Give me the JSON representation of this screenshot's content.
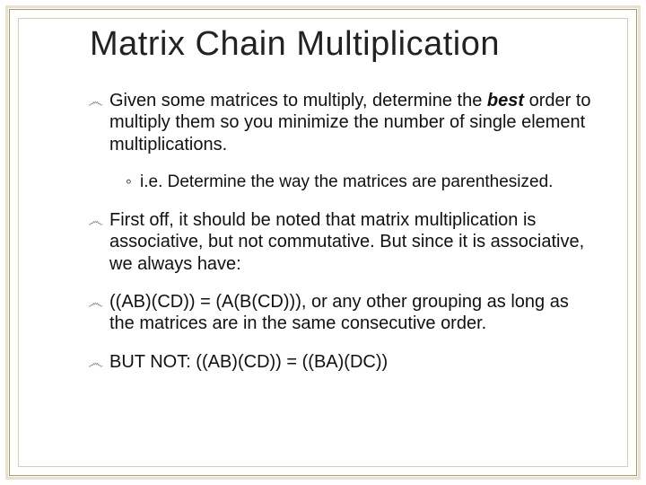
{
  "slide": {
    "title": "Matrix Chain Multiplication",
    "title_color": "#222222",
    "title_fontsize": 38,
    "body_fontsize": 20,
    "body_color": "#111111",
    "bullet_glyph": "෴",
    "sub_glyph": "◦",
    "emphasis_word": "best",
    "bullets": [
      {
        "pre": "Given some matrices to multiply, determine the ",
        "emph": "best",
        "post": " order to multiply them so you minimize the number of single element multiplications.",
        "sub": "i.e. Determine the way the matrices are parenthesized."
      },
      {
        "text": "First off, it should be noted that matrix multiplication is associative, but not commutative. But since it is associative, we always have:"
      },
      {
        "text": "((AB)(CD)) = (A(B(CD))), or any other grouping as long as the matrices are in the same consecutive order."
      },
      {
        "text": "BUT NOT: ((AB)(CD)) =  ((BA)(DC))"
      }
    ],
    "frame": {
      "outer_color": "#e9e2cf",
      "mid_color": "#b7995f",
      "inner_color": "#d9cfa8"
    },
    "background_color": "#ffffff"
  }
}
